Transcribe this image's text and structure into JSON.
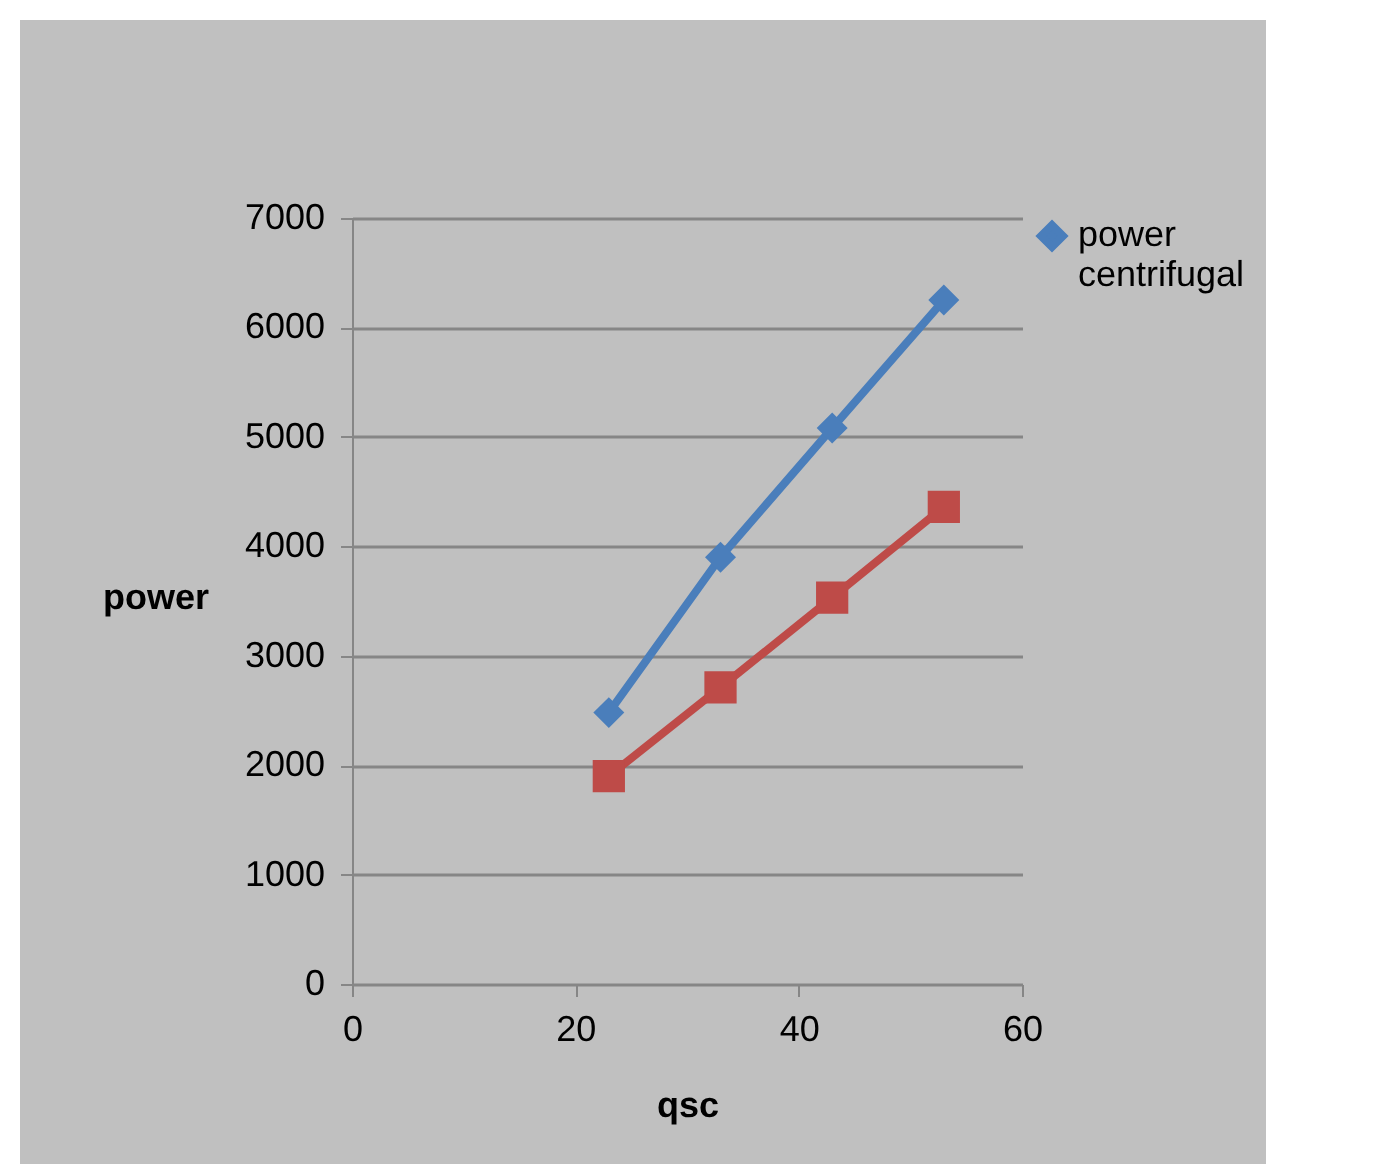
{
  "chart_data": {
    "type": "line",
    "xlabel": "qsc",
    "ylabel": "power",
    "x": [
      23,
      33,
      43,
      53
    ],
    "series": [
      {
        "name": "power centrifugal",
        "color": "#4a7ebb",
        "values": [
          2480,
          3900,
          5080,
          6250
        ]
      },
      {
        "color": "#be4b48",
        "marker": "square",
        "values": [
          1900,
          2710,
          3530,
          4360
        ]
      }
    ],
    "xlim": [
      0,
      60
    ],
    "xticks": [
      0,
      20,
      40,
      60
    ],
    "ylim": [
      0,
      7000
    ],
    "yticks": [
      0,
      1000,
      2000,
      3000,
      4000,
      5000,
      6000,
      7000
    ],
    "grid": "y",
    "legend": "right",
    "marker": "diamond",
    "line_style": "solid"
  }
}
